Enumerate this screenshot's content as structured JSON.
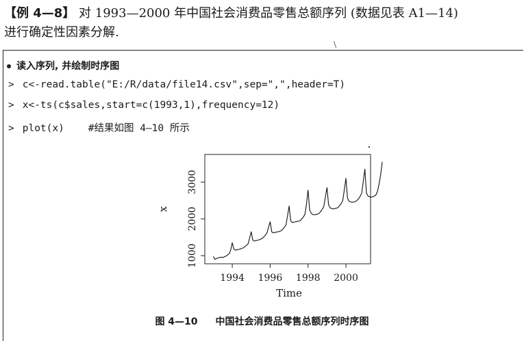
{
  "intro": {
    "label": "【例 4—8】",
    "line1_rest": " 对 1993—2000 年中国社会消费品零售总额序列 (数据见表 A1—14)",
    "line2": "进行确定性因素分解."
  },
  "stray_mark": "\\",
  "section": {
    "bullet_text": "读入序列, 并绘制时序图"
  },
  "code": [
    {
      "prompt": ">",
      "text": "c<-read.table(\"E:/R/data/file14.csv\",sep=\",\",header=T)"
    },
    {
      "prompt": ">",
      "text": "x<-ts(c$sales,start=c(1993,1),frequency=12)"
    },
    {
      "prompt": ">",
      "text": "plot(x)    #结果如图 4—10 所示"
    }
  ],
  "caption": {
    "number": "图 4—10",
    "text": "中国社会消费品零售总额序列时序图"
  },
  "chart_data": {
    "type": "line",
    "xlabel": "Time",
    "ylabel": "x",
    "xlim": [
      1992.55,
      2001.3
    ],
    "ylim": [
      780,
      3750
    ],
    "xticks": [
      1994,
      1996,
      1998,
      2000
    ],
    "yticks": [
      1000,
      2000,
      3000
    ],
    "xtick_labels": [
      "1994",
      "1996",
      "1998",
      "2000"
    ],
    "ytick_labels": [
      "1000",
      "2000",
      "3000"
    ],
    "grid": false,
    "series": [
      {
        "start": [
          1993,
          1
        ],
        "frequency": 12,
        "values": [
          980,
          900,
          920,
          940,
          950,
          960,
          950,
          970,
          990,
          1020,
          1050,
          1150,
          1350,
          1180,
          1150,
          1160,
          1170,
          1180,
          1200,
          1210,
          1250,
          1280,
          1320,
          1480,
          1650,
          1420,
          1400,
          1410,
          1420,
          1430,
          1450,
          1470,
          1510,
          1560,
          1620,
          1780,
          1920,
          1650,
          1620,
          1630,
          1640,
          1650,
          1660,
          1680,
          1720,
          1770,
          1830,
          2080,
          2350,
          1950,
          1900,
          1910,
          1920,
          1930,
          1940,
          1950,
          2000,
          2050,
          2120,
          2400,
          2780,
          2250,
          2150,
          2120,
          2110,
          2120,
          2130,
          2150,
          2200,
          2260,
          2340,
          2600,
          2850,
          2380,
          2300,
          2280,
          2270,
          2280,
          2290,
          2310,
          2360,
          2420,
          2500,
          2800,
          3100,
          2560,
          2480,
          2460,
          2450,
          2460,
          2470,
          2500,
          2550,
          2610,
          2700,
          3020,
          3350,
          2700,
          2620,
          2600,
          2590,
          2600,
          2620,
          2650,
          2750,
          2950,
          3200,
          3550
        ]
      }
    ]
  }
}
